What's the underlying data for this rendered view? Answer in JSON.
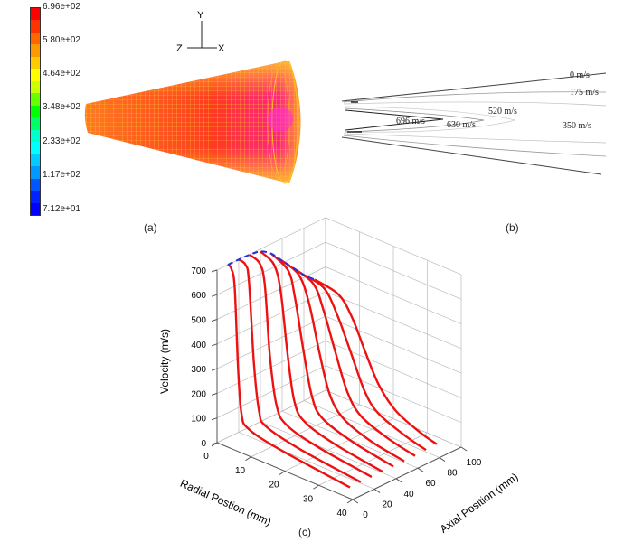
{
  "panel_a": {
    "label": "(a)",
    "colorbar": {
      "tick_labels": [
        "6.96e+02",
        "5.80e+02",
        "4.64e+02",
        "3.48e+02",
        "2.33e+02",
        "1.17e+02",
        "7.12e+01"
      ],
      "colors": [
        "#ff0000",
        "#ff3300",
        "#ff6600",
        "#ff9900",
        "#ffcc00",
        "#ffff00",
        "#ccff00",
        "#66ff00",
        "#00ff00",
        "#00ff66",
        "#00ffcc",
        "#00ffff",
        "#00ccff",
        "#0099ff",
        "#0055ff",
        "#0022ff",
        "#0000ff"
      ]
    },
    "axes_triad": {
      "y": "Y",
      "z": "Z",
      "x": "X"
    }
  },
  "panel_b": {
    "label": "(b)",
    "contour_labels": [
      "0 m/s",
      "175 m/s",
      "696 m/s",
      "630 m/s",
      "520 m/s",
      "350 m/s"
    ]
  },
  "chart_data": {
    "type": "line",
    "label": "(c)",
    "zlabel": "Velocity (m/s)",
    "xlabel": "Radial Postion (mm)",
    "ylabel": "Axial Position (mm)",
    "zlim": [
      0,
      700
    ],
    "xlim": [
      0,
      40
    ],
    "ylim": [
      0,
      100
    ],
    "z_ticks": [
      "0",
      "100",
      "200",
      "300",
      "400",
      "500",
      "600",
      "700"
    ],
    "x_ticks": [
      "0",
      "10",
      "20",
      "30",
      "40"
    ],
    "y_ticks": [
      "0",
      "20",
      "40",
      "60",
      "80",
      "100"
    ],
    "grid": true,
    "profile_color": "#ee1111",
    "centerline_color": "#2233dd",
    "profiles": [
      {
        "axial": 10,
        "points": [
          [
            0,
            700
          ],
          [
            1,
            690
          ],
          [
            2,
            620
          ],
          [
            3,
            300
          ],
          [
            4,
            120
          ],
          [
            6,
            70
          ],
          [
            15,
            40
          ],
          [
            36,
            5
          ]
        ]
      },
      {
        "axial": 20,
        "points": [
          [
            0,
            700
          ],
          [
            2,
            690
          ],
          [
            3,
            630
          ],
          [
            4.5,
            300
          ],
          [
            6,
            120
          ],
          [
            8,
            70
          ],
          [
            18,
            35
          ],
          [
            36,
            5
          ]
        ]
      },
      {
        "axial": 30,
        "points": [
          [
            0,
            698
          ],
          [
            3,
            680
          ],
          [
            4.5,
            600
          ],
          [
            6,
            320
          ],
          [
            8,
            130
          ],
          [
            11,
            70
          ],
          [
            20,
            35
          ],
          [
            36,
            5
          ]
        ]
      },
      {
        "axial": 40,
        "points": [
          [
            0,
            690
          ],
          [
            4,
            660
          ],
          [
            6,
            560
          ],
          [
            8,
            320
          ],
          [
            10,
            140
          ],
          [
            13,
            75
          ],
          [
            22,
            35
          ],
          [
            36,
            5
          ]
        ]
      },
      {
        "axial": 50,
        "points": [
          [
            0,
            660
          ],
          [
            5,
            620
          ],
          [
            7,
            520
          ],
          [
            9.5,
            320
          ],
          [
            12,
            150
          ],
          [
            15,
            80
          ],
          [
            24,
            35
          ],
          [
            36,
            5
          ]
        ]
      },
      {
        "axial": 60,
        "points": [
          [
            0,
            610
          ],
          [
            5,
            580
          ],
          [
            8,
            480
          ],
          [
            11,
            300
          ],
          [
            14,
            150
          ],
          [
            18,
            75
          ],
          [
            26,
            30
          ],
          [
            36,
            5
          ]
        ]
      },
      {
        "axial": 70,
        "points": [
          [
            0,
            560
          ],
          [
            6,
            530
          ],
          [
            9,
            440
          ],
          [
            12.5,
            290
          ],
          [
            16,
            150
          ],
          [
            20,
            75
          ],
          [
            28,
            30
          ],
          [
            36,
            5
          ]
        ]
      },
      {
        "axial": 80,
        "points": [
          [
            0,
            510
          ],
          [
            6,
            490
          ],
          [
            10,
            400
          ],
          [
            14,
            270
          ],
          [
            18,
            140
          ],
          [
            22,
            75
          ],
          [
            30,
            30
          ],
          [
            36,
            8
          ]
        ]
      },
      {
        "axial": 90,
        "points": [
          [
            0,
            470
          ],
          [
            7,
            450
          ],
          [
            11,
            380
          ],
          [
            15,
            260
          ],
          [
            19,
            150
          ],
          [
            24,
            75
          ],
          [
            31,
            30
          ],
          [
            36,
            10
          ]
        ]
      }
    ]
  }
}
